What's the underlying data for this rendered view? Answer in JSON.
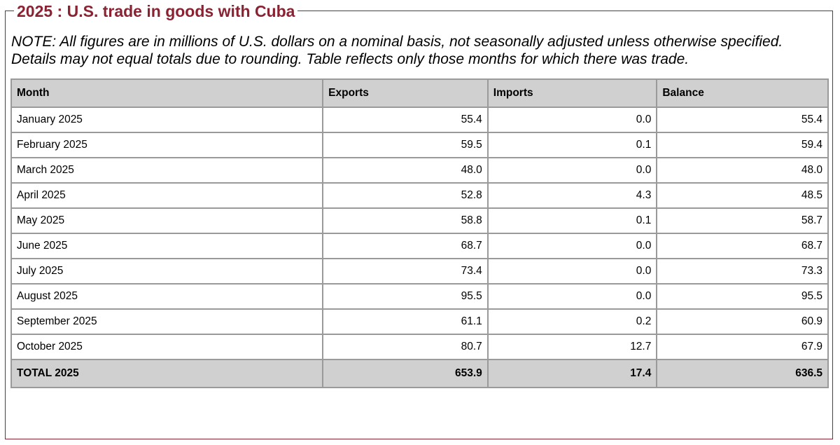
{
  "title": "2025 : U.S. trade in goods with Cuba",
  "note": "NOTE: All figures are in millions of U.S. dollars on a nominal basis, not seasonally adjusted unless otherwise specified. Details may not equal totals due to rounding. Table reflects only those months for which there was trade.",
  "table": {
    "headers": [
      "Month",
      "Exports",
      "Imports",
      "Balance"
    ],
    "rows": [
      [
        "January 2025",
        "55.4",
        "0.0",
        "55.4"
      ],
      [
        "February 2025",
        "59.5",
        "0.1",
        "59.4"
      ],
      [
        "March 2025",
        "48.0",
        "0.0",
        "48.0"
      ],
      [
        "April 2025",
        "52.8",
        "4.3",
        "48.5"
      ],
      [
        "May 2025",
        "58.8",
        "0.1",
        "58.7"
      ],
      [
        "June 2025",
        "68.7",
        "0.0",
        "68.7"
      ],
      [
        "July 2025",
        "73.4",
        "0.0",
        "73.3"
      ],
      [
        "August 2025",
        "95.5",
        "0.0",
        "95.5"
      ],
      [
        "September 2025",
        "61.1",
        "0.2",
        "60.9"
      ],
      [
        "October 2025",
        "80.7",
        "12.7",
        "67.9"
      ]
    ],
    "total": [
      "TOTAL 2025",
      "653.9",
      "17.4",
      "636.5"
    ]
  },
  "colors": {
    "accent": "#8b2232",
    "header_bg": "#d0d0d0",
    "border": "#9a9a9a"
  }
}
